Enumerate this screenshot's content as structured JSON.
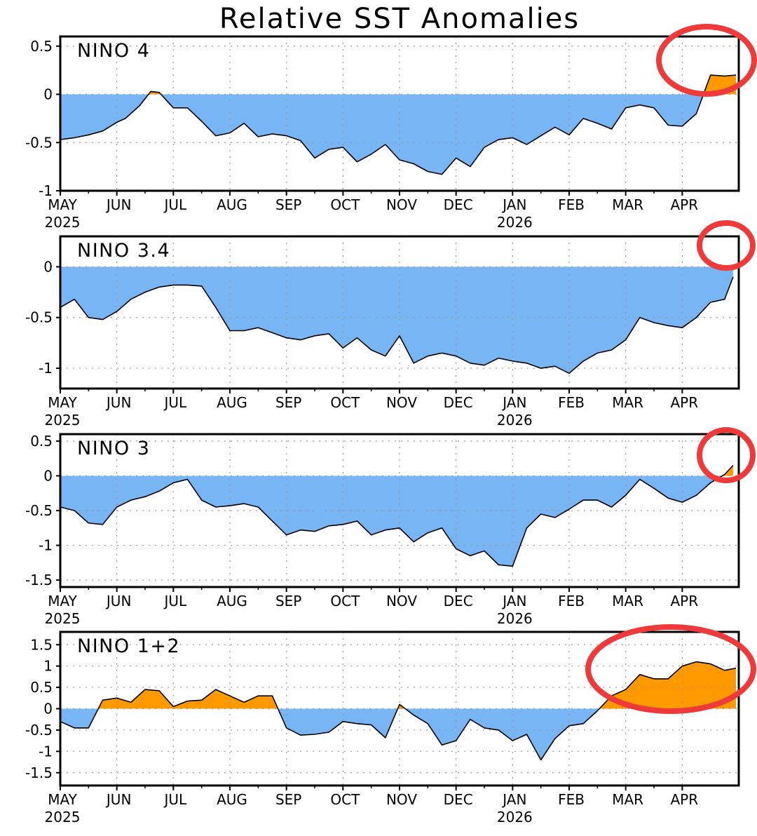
{
  "title": "Relative SST Anomalies",
  "colors": {
    "negative": "#78b5f5",
    "positive": "#ff9900",
    "circle": "#ee3a3a",
    "line": "#000000"
  },
  "chart_data": [
    {
      "type": "area",
      "name": "NINO 4",
      "ylim": [
        -1,
        0.6
      ],
      "yticks": [
        0.5,
        0,
        -0.5,
        -1
      ],
      "ytick_labels": [
        "0.5",
        "0",
        "-0.5",
        "-1"
      ],
      "xlim": [
        0,
        12
      ],
      "x_month_ticks": [
        "MAY",
        "JUN",
        "JUL",
        "AUG",
        "SEP",
        "OCT",
        "NOV",
        "DEC",
        "JAN",
        "FEB",
        "MAR",
        "APR"
      ],
      "x_year_labels": [
        {
          "label": "2025",
          "at": "MAY"
        },
        {
          "label": "2026",
          "at": "JAN"
        }
      ],
      "x": [
        0,
        0.25,
        0.5,
        0.75,
        1.0,
        1.15,
        1.4,
        1.6,
        1.75,
        2.0,
        2.25,
        2.5,
        2.75,
        3.0,
        3.25,
        3.5,
        3.75,
        4.0,
        4.25,
        4.5,
        4.75,
        5.0,
        5.25,
        5.5,
        5.75,
        6.0,
        6.25,
        6.5,
        6.75,
        7.0,
        7.25,
        7.5,
        7.75,
        8.0,
        8.25,
        8.5,
        8.75,
        9.0,
        9.25,
        9.5,
        9.75,
        10.0,
        10.25,
        10.5,
        10.75,
        11.0,
        11.25,
        11.5,
        11.75,
        11.95
      ],
      "values": [
        -0.47,
        -0.45,
        -0.42,
        -0.38,
        -0.29,
        -0.25,
        -0.12,
        0.03,
        0.02,
        -0.14,
        -0.14,
        -0.28,
        -0.43,
        -0.4,
        -0.3,
        -0.44,
        -0.41,
        -0.43,
        -0.48,
        -0.66,
        -0.57,
        -0.55,
        -0.7,
        -0.62,
        -0.52,
        -0.68,
        -0.72,
        -0.8,
        -0.83,
        -0.66,
        -0.75,
        -0.55,
        -0.47,
        -0.45,
        -0.52,
        -0.43,
        -0.34,
        -0.42,
        -0.25,
        -0.3,
        -0.36,
        -0.14,
        -0.11,
        -0.14,
        -0.32,
        -0.33,
        -0.2,
        0.2,
        0.19,
        0.2
      ]
    },
    {
      "type": "area",
      "name": "NINO 3.4",
      "ylim": [
        -1.2,
        0.3
      ],
      "yticks": [
        0,
        -0.5,
        -1
      ],
      "ytick_labels": [
        "0",
        "-0.5",
        "-1"
      ],
      "xlim": [
        0,
        12
      ],
      "x_month_ticks": [
        "MAY",
        "JUN",
        "JUL",
        "AUG",
        "SEP",
        "OCT",
        "NOV",
        "DEC",
        "JAN",
        "FEB",
        "MAR",
        "APR"
      ],
      "x_year_labels": [
        {
          "label": "2025",
          "at": "MAY"
        },
        {
          "label": "2026",
          "at": "JAN"
        }
      ],
      "x": [
        0,
        0.25,
        0.5,
        0.75,
        1.0,
        1.25,
        1.5,
        1.75,
        2.0,
        2.25,
        2.5,
        2.75,
        3.0,
        3.25,
        3.5,
        3.75,
        4.0,
        4.25,
        4.5,
        4.75,
        5.0,
        5.25,
        5.5,
        5.75,
        6.0,
        6.25,
        6.5,
        6.75,
        7.0,
        7.25,
        7.5,
        7.75,
        8.0,
        8.25,
        8.5,
        8.75,
        9.0,
        9.25,
        9.5,
        9.75,
        10.0,
        10.25,
        10.5,
        10.75,
        11.0,
        11.25,
        11.5,
        11.75,
        11.9
      ],
      "values": [
        -0.4,
        -0.32,
        -0.5,
        -0.52,
        -0.44,
        -0.32,
        -0.25,
        -0.2,
        -0.18,
        -0.18,
        -0.19,
        -0.4,
        -0.63,
        -0.63,
        -0.6,
        -0.65,
        -0.7,
        -0.72,
        -0.68,
        -0.66,
        -0.8,
        -0.7,
        -0.82,
        -0.88,
        -0.68,
        -0.95,
        -0.88,
        -0.85,
        -0.88,
        -0.95,
        -0.97,
        -0.9,
        -0.93,
        -0.95,
        -1.0,
        -0.98,
        -1.05,
        -0.93,
        -0.85,
        -0.82,
        -0.72,
        -0.5,
        -0.55,
        -0.58,
        -0.6,
        -0.5,
        -0.35,
        -0.32,
        -0.1
      ]
    },
    {
      "type": "area",
      "name": "NINO 3",
      "ylim": [
        -1.6,
        0.6
      ],
      "yticks": [
        0.5,
        0,
        -0.5,
        -1,
        -1.5
      ],
      "ytick_labels": [
        "0.5",
        "0",
        "-0.5",
        "-1",
        "-1.5"
      ],
      "xlim": [
        0,
        12
      ],
      "x_month_ticks": [
        "MAY",
        "JUN",
        "JUL",
        "AUG",
        "SEP",
        "OCT",
        "NOV",
        "DEC",
        "JAN",
        "FEB",
        "MAR",
        "APR"
      ],
      "x_year_labels": [
        {
          "label": "2025",
          "at": "MAY"
        },
        {
          "label": "2026",
          "at": "JAN"
        }
      ],
      "x": [
        0,
        0.25,
        0.5,
        0.75,
        1.0,
        1.25,
        1.5,
        1.75,
        2.0,
        2.25,
        2.5,
        2.75,
        3.0,
        3.25,
        3.5,
        3.75,
        4.0,
        4.25,
        4.5,
        4.75,
        5.0,
        5.25,
        5.5,
        5.75,
        6.0,
        6.25,
        6.5,
        6.75,
        7.0,
        7.25,
        7.5,
        7.75,
        8.0,
        8.25,
        8.5,
        8.75,
        9.0,
        9.25,
        9.5,
        9.75,
        10.0,
        10.25,
        10.5,
        10.75,
        11.0,
        11.25,
        11.5,
        11.75,
        11.9
      ],
      "values": [
        -0.45,
        -0.5,
        -0.68,
        -0.7,
        -0.45,
        -0.35,
        -0.3,
        -0.22,
        -0.1,
        -0.05,
        -0.35,
        -0.45,
        -0.43,
        -0.4,
        -0.45,
        -0.65,
        -0.85,
        -0.78,
        -0.8,
        -0.72,
        -0.7,
        -0.65,
        -0.85,
        -0.78,
        -0.75,
        -0.95,
        -0.82,
        -0.75,
        -1.05,
        -1.15,
        -1.08,
        -1.28,
        -1.3,
        -0.75,
        -0.55,
        -0.6,
        -0.48,
        -0.35,
        -0.35,
        -0.45,
        -0.28,
        -0.05,
        -0.18,
        -0.32,
        -0.38,
        -0.28,
        -0.1,
        0.02,
        0.15
      ]
    },
    {
      "type": "area",
      "name": "NINO 1+2",
      "ylim": [
        -1.8,
        1.8
      ],
      "yticks": [
        1.5,
        1,
        0.5,
        0,
        -0.5,
        -1,
        -1.5
      ],
      "ytick_labels": [
        "1.5",
        "1",
        "0.5",
        "0",
        "-0.5",
        "-1",
        "-1.5"
      ],
      "xlim": [
        0,
        12
      ],
      "x_month_ticks": [
        "MAY",
        "JUN",
        "JUL",
        "AUG",
        "SEP",
        "OCT",
        "NOV",
        "DEC",
        "JAN",
        "FEB",
        "MAR",
        "APR"
      ],
      "x_year_labels": [
        {
          "label": "2025",
          "at": "MAY"
        },
        {
          "label": "2026",
          "at": "JAN"
        }
      ],
      "x": [
        0,
        0.25,
        0.5,
        0.75,
        1.0,
        1.25,
        1.5,
        1.75,
        2.0,
        2.25,
        2.5,
        2.75,
        3.0,
        3.25,
        3.5,
        3.75,
        4.0,
        4.25,
        4.5,
        4.75,
        5.0,
        5.25,
        5.5,
        5.75,
        6.0,
        6.25,
        6.5,
        6.75,
        7.0,
        7.25,
        7.5,
        7.75,
        8.0,
        8.25,
        8.5,
        8.75,
        9.0,
        9.25,
        9.5,
        9.75,
        10.0,
        10.25,
        10.5,
        10.75,
        11.0,
        11.25,
        11.5,
        11.75,
        11.95
      ],
      "values": [
        -0.3,
        -0.45,
        -0.45,
        0.2,
        0.25,
        0.15,
        0.45,
        0.42,
        0.05,
        0.18,
        0.2,
        0.45,
        0.3,
        0.15,
        0.3,
        0.3,
        -0.45,
        -0.62,
        -0.6,
        -0.55,
        -0.3,
        -0.35,
        -0.38,
        -0.68,
        0.1,
        -0.15,
        -0.35,
        -0.85,
        -0.75,
        -0.25,
        -0.45,
        -0.5,
        -0.75,
        -0.6,
        -1.2,
        -0.7,
        -0.4,
        -0.35,
        -0.05,
        0.3,
        0.45,
        0.8,
        0.7,
        0.7,
        1.0,
        1.1,
        1.05,
        0.9,
        0.95
      ]
    }
  ]
}
